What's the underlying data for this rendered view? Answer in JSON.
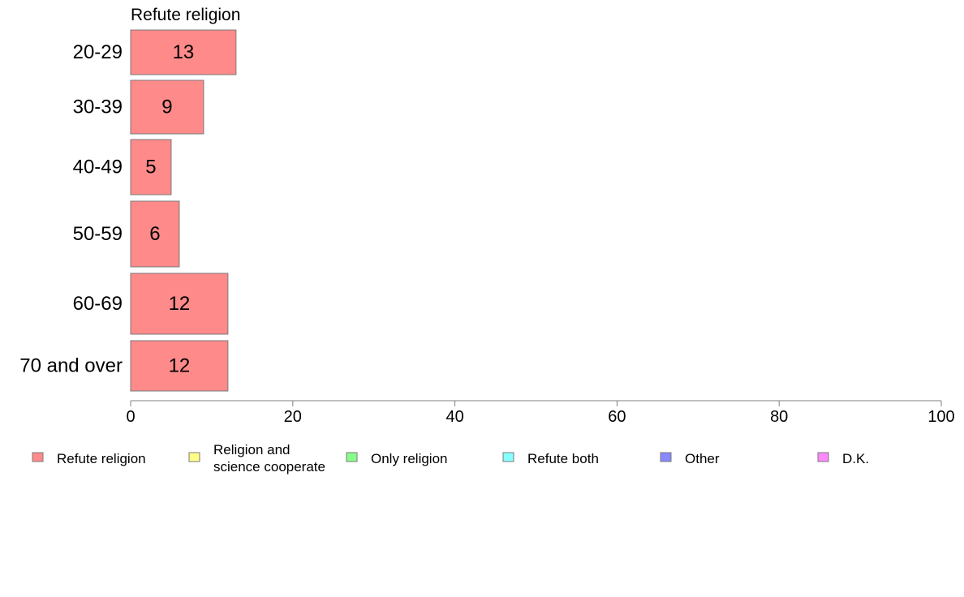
{
  "chart_data": {
    "type": "bar",
    "orientation": "horizontal",
    "panel_title": "Refute religion",
    "categories": [
      "20-29",
      "30-39",
      "40-49",
      "50-59",
      "60-69",
      "70 and over"
    ],
    "series": [
      {
        "name": "Refute religion",
        "values": [
          13,
          9,
          5,
          6,
          12,
          12
        ],
        "data_labels": [
          "13",
          "9",
          "5",
          "6",
          "12",
          "12"
        ],
        "color": "#ff8a8a"
      }
    ],
    "xlim": [
      0,
      100
    ],
    "xticks": [
      "0",
      "20",
      "40",
      "60",
      "80",
      "100"
    ],
    "grid": false,
    "legend_position": "bottom",
    "legend": [
      {
        "label": "Refute religion",
        "color": "#ff8a8a"
      },
      {
        "label": "Religion and\nscience cooperate",
        "color": "#ffff88"
      },
      {
        "label": "Only religion",
        "color": "#88ff88"
      },
      {
        "label": "Refute both",
        "color": "#88ffff"
      },
      {
        "label": "Other",
        "color": "#8888ff"
      },
      {
        "label": "D.K.",
        "color": "#ff88ff"
      }
    ]
  }
}
